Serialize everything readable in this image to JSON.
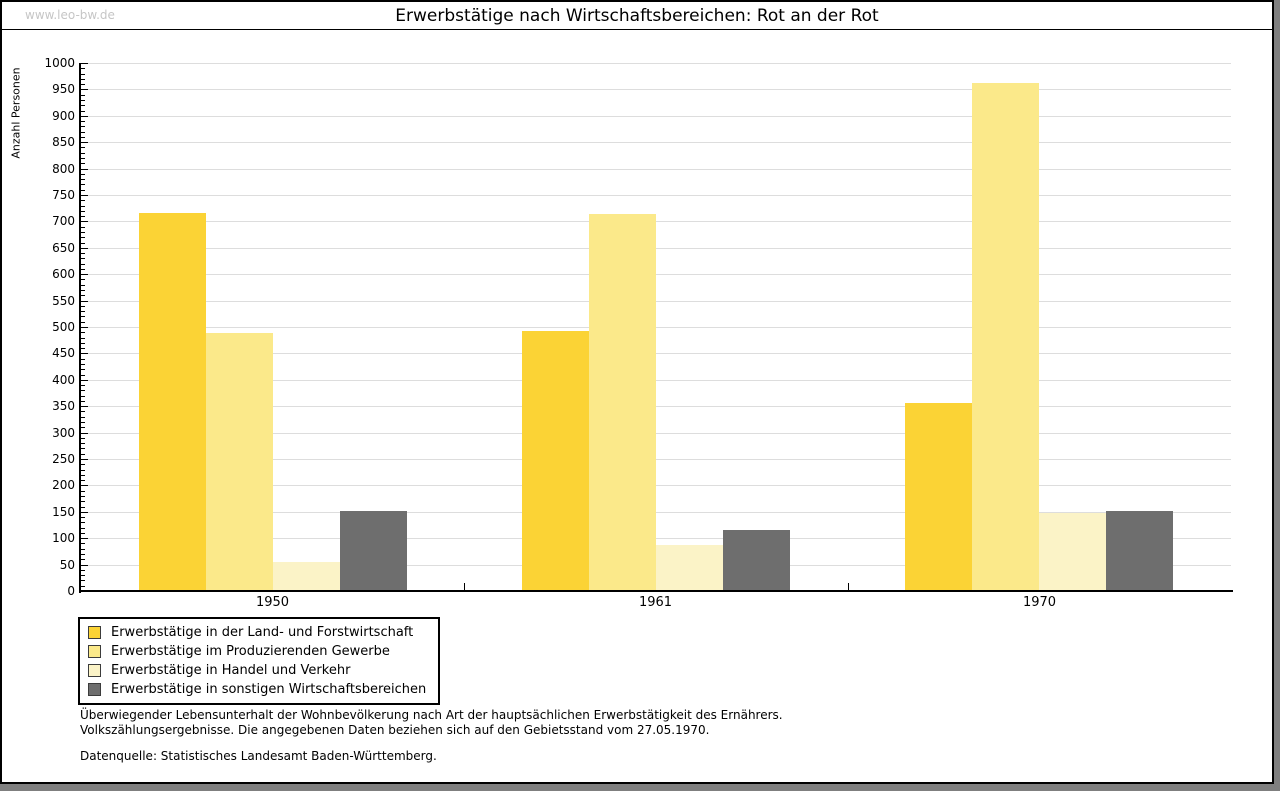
{
  "page": {
    "watermark": "www.leo-bw.de"
  },
  "chart_data": {
    "type": "bar",
    "title": "Erwerbstätige nach Wirtschaftsbereichen: Rot an der Rot",
    "ylabel": "Anzahl Personen",
    "xlabel": "",
    "ylim": [
      0,
      1000
    ],
    "ytick_step": 50,
    "minor_tick_step": 10,
    "grid": true,
    "legend_position": "bottom-left",
    "categories": [
      "1950",
      "1961",
      "1970"
    ],
    "series": [
      {
        "name": "Erwerbstätige in der Land- und Forstwirtschaft",
        "color": "#fbd335",
        "values": [
          715,
          493,
          357
        ]
      },
      {
        "name": "Erwerbstätige im Produzierenden Gewerbe",
        "color": "#fbe98a",
        "values": [
          488,
          714,
          962
        ]
      },
      {
        "name": "Erwerbstätige in Handel und Verkehr",
        "color": "#fbf3c7",
        "values": [
          55,
          88,
          148
        ]
      },
      {
        "name": "Erwerbstätige in sonstigen Wirtschaftsbereichen",
        "color": "#6e6e6e",
        "values": [
          152,
          115,
          152
        ]
      }
    ]
  },
  "footer": {
    "line1": "Überwiegender Lebensunterhalt der Wohnbevölkerung nach Art der hauptsächlichen Erwerbstätigkeit des Ernährers.",
    "line2": "Volkszählungsergebnisse. Die angegebenen Daten beziehen sich auf den Gebietsstand vom 27.05.1970.",
    "source": "Datenquelle: Statistisches Landesamt Baden-Württemberg."
  },
  "colors": {
    "grid": "#dddddd",
    "axis": "#000000",
    "watermark": "#c6c6c6",
    "page_shadow": "#7f7f7f"
  }
}
